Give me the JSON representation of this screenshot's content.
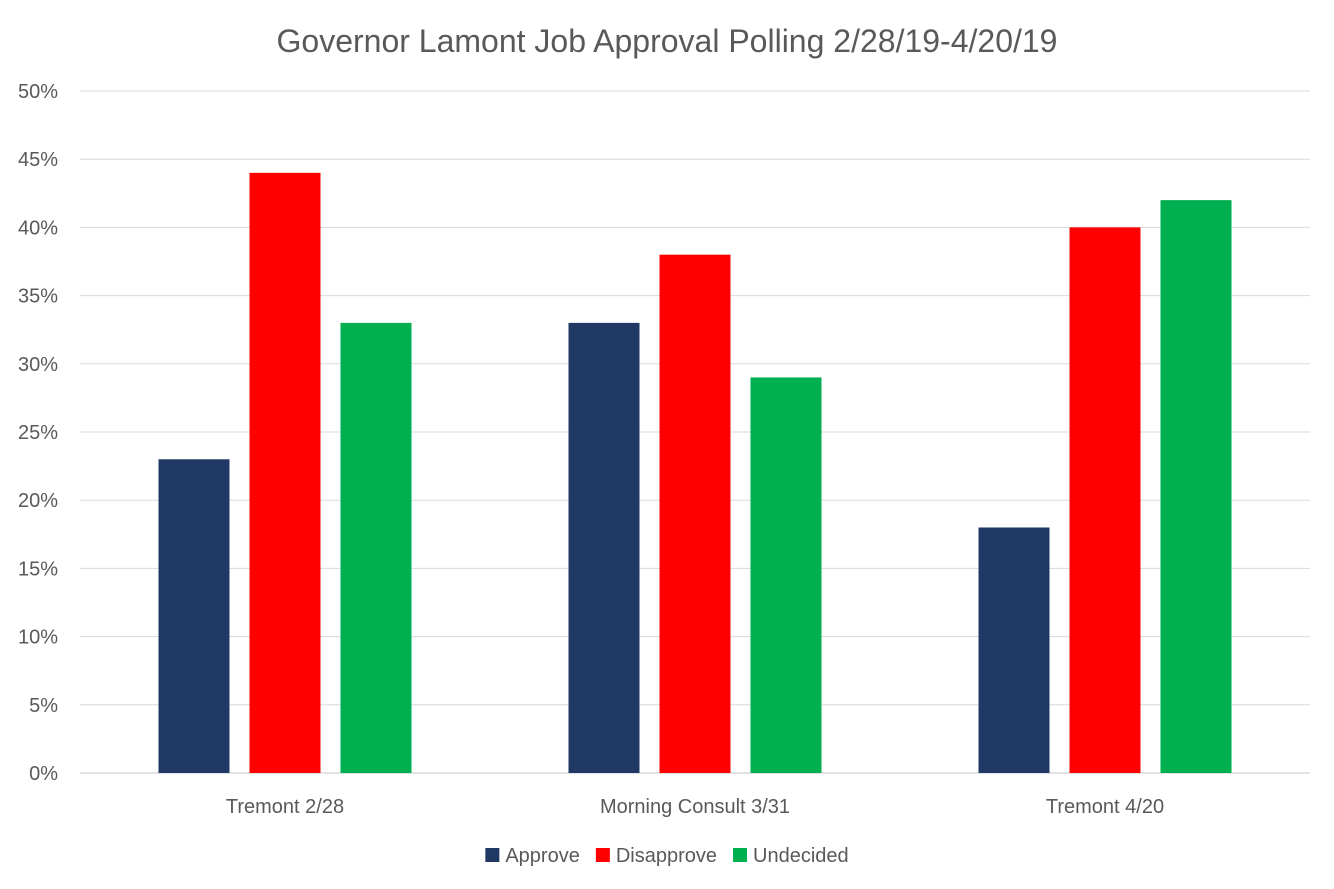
{
  "chart_data": {
    "type": "bar",
    "title": "Governor Lamont Job Approval Polling 2/28/19-4/20/19",
    "categories": [
      "Tremont 2/28",
      "Morning Consult 3/31",
      "Tremont 4/20"
    ],
    "series": [
      {
        "name": "Approve",
        "color": "#203864",
        "values": [
          23,
          33,
          18
        ]
      },
      {
        "name": "Disapprove",
        "color": "#ff0000",
        "values": [
          44,
          38,
          40
        ]
      },
      {
        "name": "Undecided",
        "color": "#00b050",
        "values": [
          33,
          29,
          42
        ]
      }
    ],
    "ylim": [
      0,
      50
    ],
    "yticks": [
      "0%",
      "5%",
      "10%",
      "15%",
      "20%",
      "25%",
      "30%",
      "35%",
      "40%",
      "45%",
      "50%"
    ],
    "ytick_values": [
      0,
      5,
      10,
      15,
      20,
      25,
      30,
      35,
      40,
      45,
      50
    ],
    "grid": true,
    "legend": "bottom-center",
    "gridline_color": "#d9d9d9"
  }
}
